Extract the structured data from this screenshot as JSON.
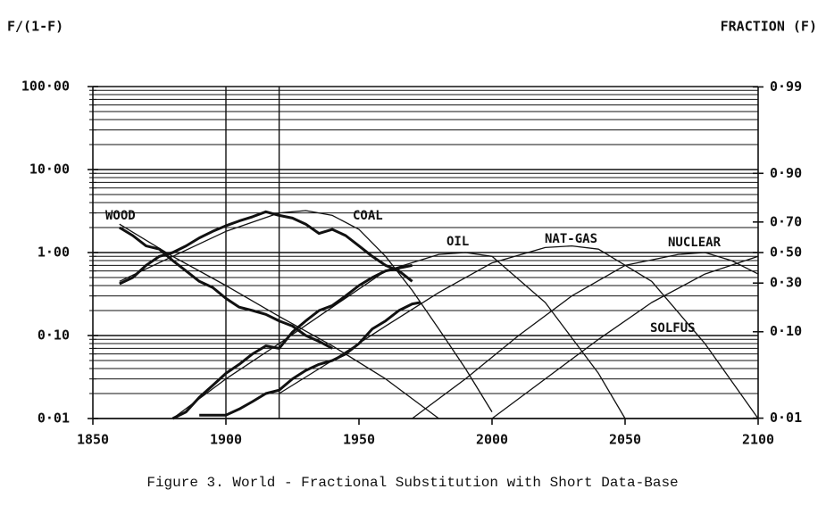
{
  "chart_data": {
    "type": "line",
    "y_label": "F/(1-F)",
    "y2_label": "FRACTION (F)",
    "caption": "Figure 3.  World - Fractional Substitution with Short Data-Base",
    "log_scale": true,
    "grid": true,
    "color": "#111111",
    "xlim": [
      1850,
      2100
    ],
    "xticks": [
      1850,
      1900,
      1950,
      2000,
      2050,
      2100
    ],
    "vlines": [
      1900,
      1920
    ],
    "ylim": [
      0.01,
      100
    ],
    "yticks": [
      {
        "value": 0.01,
        "label": "0·01"
      },
      {
        "value": 0.1,
        "label": "0·10"
      },
      {
        "value": 1,
        "label": "1·00"
      },
      {
        "value": 10,
        "label": "10·00"
      },
      {
        "value": 100,
        "label": "100·00"
      }
    ],
    "y_minor_ticks": [
      0.02,
      0.03,
      0.04,
      0.05,
      0.06,
      0.07,
      0.08,
      0.09,
      0.2,
      0.3,
      0.4,
      0.5,
      0.6,
      0.7,
      0.8,
      0.9,
      2,
      3,
      4,
      5,
      6,
      7,
      8,
      9,
      20,
      30,
      40,
      50,
      60,
      70,
      80,
      90
    ],
    "y2lim": [
      0.01,
      100
    ],
    "y2ticks": [
      {
        "value": 99,
        "label": "0·99"
      },
      {
        "value": 9,
        "label": "0·90"
      },
      {
        "value": 2.333,
        "label": "0·70"
      },
      {
        "value": 1,
        "label": "0·50"
      },
      {
        "value": 0.4286,
        "label": "0·30"
      },
      {
        "value": 0.1111,
        "label": "0·10"
      },
      {
        "value": 0.0101,
        "label": "0·01"
      }
    ],
    "series": [
      {
        "name": "WOOD",
        "x": [
          1860,
          1880,
          1900,
          1920,
          1940,
          1960,
          1980
        ],
        "values": [
          2.2,
          0.9,
          0.4,
          0.17,
          0.075,
          0.03,
          0.01
        ]
      },
      {
        "name": "COAL",
        "x": [
          1860,
          1880,
          1900,
          1920,
          1930,
          1940,
          1950,
          1960,
          1970,
          1980,
          1990,
          2000
        ],
        "values": [
          0.45,
          0.9,
          1.8,
          3.0,
          3.2,
          2.8,
          1.9,
          0.9,
          0.35,
          0.12,
          0.04,
          0.012
        ]
      },
      {
        "name": "OIL",
        "x": [
          1880,
          1900,
          1920,
          1940,
          1960,
          1980,
          1990,
          2000,
          2020,
          2040,
          2050
        ],
        "values": [
          0.01,
          0.03,
          0.08,
          0.22,
          0.6,
          0.95,
          1.0,
          0.9,
          0.25,
          0.035,
          0.01
        ]
      },
      {
        "name": "NAT-GAS",
        "x": [
          1920,
          1940,
          1960,
          1980,
          2000,
          2020,
          2030,
          2040,
          2060,
          2080,
          2100
        ],
        "values": [
          0.02,
          0.05,
          0.13,
          0.33,
          0.75,
          1.15,
          1.2,
          1.1,
          0.45,
          0.08,
          0.01
        ]
      },
      {
        "name": "NUCLEAR",
        "x": [
          1970,
          1990,
          2010,
          2030,
          2050,
          2070,
          2080,
          2090,
          2100
        ],
        "values": [
          0.01,
          0.03,
          0.1,
          0.3,
          0.7,
          0.95,
          1.0,
          0.8,
          0.55
        ]
      },
      {
        "name": "SOLFUS",
        "x": [
          2000,
          2020,
          2040,
          2060,
          2080,
          2100
        ],
        "values": [
          0.01,
          0.03,
          0.09,
          0.25,
          0.55,
          0.9
        ]
      }
    ],
    "historical": [
      {
        "x": [
          1860,
          1865,
          1870,
          1875,
          1880,
          1885,
          1890,
          1895,
          1900,
          1905,
          1910,
          1915,
          1920,
          1925,
          1930,
          1935,
          1940
        ],
        "values": [
          2.0,
          1.6,
          1.2,
          1.1,
          0.8,
          0.6,
          0.45,
          0.38,
          0.28,
          0.22,
          0.2,
          0.18,
          0.15,
          0.13,
          0.1,
          0.085,
          0.07
        ]
      },
      {
        "x": [
          1860,
          1865,
          1870,
          1875,
          1880,
          1885,
          1890,
          1895,
          1900,
          1905,
          1910,
          1915,
          1920,
          1925,
          1930,
          1935,
          1940,
          1945,
          1950,
          1955,
          1960,
          1965,
          1970
        ],
        "values": [
          0.42,
          0.5,
          0.7,
          0.9,
          1.0,
          1.2,
          1.5,
          1.8,
          2.1,
          2.4,
          2.7,
          3.1,
          2.8,
          2.6,
          2.2,
          1.7,
          1.9,
          1.6,
          1.2,
          0.9,
          0.7,
          0.6,
          0.45
        ]
      },
      {
        "x": [
          1880,
          1885,
          1890,
          1895,
          1900,
          1905,
          1910,
          1915,
          1920,
          1925,
          1930,
          1935,
          1940,
          1945,
          1950,
          1955,
          1960,
          1965,
          1970
        ],
        "values": [
          0.01,
          0.012,
          0.018,
          0.025,
          0.035,
          0.045,
          0.06,
          0.075,
          0.07,
          0.11,
          0.15,
          0.2,
          0.23,
          0.3,
          0.4,
          0.5,
          0.6,
          0.65,
          0.7
        ]
      },
      {
        "x": [
          1890,
          1895,
          1900,
          1905,
          1910,
          1915,
          1920,
          1925,
          1930,
          1935,
          1940,
          1945,
          1950,
          1955,
          1960,
          1965,
          1970,
          1973
        ],
        "values": [
          0.011,
          0.011,
          0.011,
          0.013,
          0.016,
          0.02,
          0.022,
          0.03,
          0.038,
          0.045,
          0.05,
          0.06,
          0.08,
          0.12,
          0.15,
          0.2,
          0.24,
          0.25
        ]
      }
    ]
  }
}
